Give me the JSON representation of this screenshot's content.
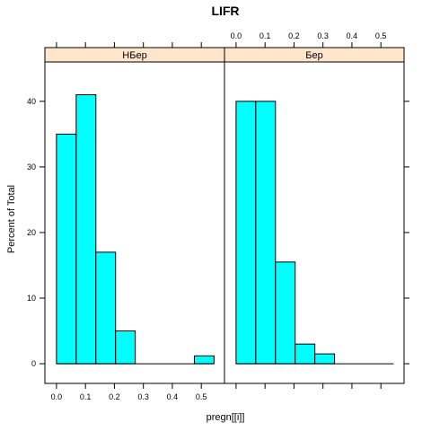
{
  "chart_data": {
    "type": "bar",
    "title": "LIFR",
    "xlabel": "pregn[[i]]",
    "ylabel": "Percent of Total",
    "xlim": [
      -0.04,
      0.58
    ],
    "ylim": [
      -3,
      46
    ],
    "x_ticks": [
      0.0,
      0.1,
      0.2,
      0.3,
      0.4,
      0.5
    ],
    "x_tick_labels": [
      "0.0",
      "0.1",
      "0.2",
      "0.3",
      "0.4",
      "0.5"
    ],
    "y_ticks": [
      0,
      10,
      20,
      30,
      40
    ],
    "y_tick_labels": [
      "0",
      "10",
      "20",
      "30",
      "40"
    ],
    "panels": [
      {
        "name": "НБер",
        "bin_edges": [
          0.0,
          0.068,
          0.136,
          0.204,
          0.272,
          0.34,
          0.408,
          0.476,
          0.544
        ],
        "values": [
          35,
          41,
          17,
          5,
          0,
          0,
          0,
          1.2
        ]
      },
      {
        "name": "Бер",
        "bin_edges": [
          0.0,
          0.068,
          0.136,
          0.204,
          0.272,
          0.34,
          0.408,
          0.476,
          0.544
        ],
        "values": [
          40,
          40,
          15.5,
          3,
          1.5,
          0,
          0,
          0
        ]
      }
    ]
  }
}
